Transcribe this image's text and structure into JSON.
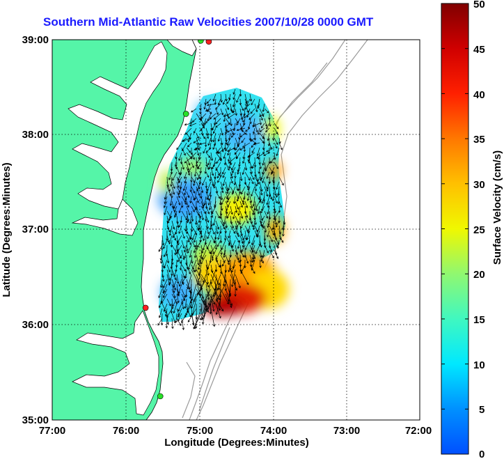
{
  "title": "Southern Mid-Atlantic Raw Velocities 2007/10/28 0000 GMT",
  "x_axis": {
    "label": "Longitude (Degrees:Minutes)",
    "ticks": [
      "77:00",
      "76:00",
      "75:00",
      "74:00",
      "73:00",
      "72:00"
    ]
  },
  "y_axis": {
    "label": "Latitude (Degrees:Minutes)",
    "ticks": [
      "39:00",
      "38:00",
      "37:00",
      "36:00",
      "35:00"
    ]
  },
  "colorbar": {
    "label": "Surface Velocity (cm/s)",
    "ticks": [
      "50",
      "45",
      "40",
      "35",
      "30",
      "25",
      "20",
      "15",
      "10",
      "5",
      "0"
    ],
    "min": 0,
    "max": 50
  },
  "colors": {
    "land": "#55f5a8",
    "title": "#1a1aff",
    "coastline": "#000000",
    "bathymetry": "#9a9a9a",
    "station": "#ff2020",
    "station_alt": "#28e028"
  },
  "map_extent": {
    "lon_west": -77.0,
    "lon_east": -72.0,
    "lat_south": 35.0,
    "lat_north": 39.0
  },
  "grid": true,
  "stations": [
    {
      "lon": -74.87,
      "lat": 38.98,
      "type": "red"
    },
    {
      "lon": -74.98,
      "lat": 38.99,
      "type": "green"
    },
    {
      "lon": -75.18,
      "lat": 38.22,
      "type": "green"
    },
    {
      "lon": -75.73,
      "lat": 36.18,
      "type": "red"
    },
    {
      "lon": -75.53,
      "lat": 35.25,
      "type": "green"
    }
  ]
}
